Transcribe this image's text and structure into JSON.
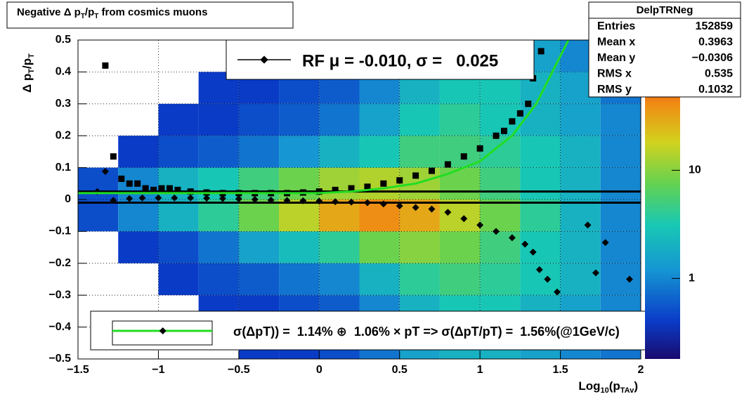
{
  "chart_data": {
    "type": "heatmap",
    "title_parts": [
      "Negative Δ p",
      "T",
      "/p",
      "T",
      " from cosmics muons"
    ],
    "x_label_parts": [
      "Log",
      "10",
      "(p",
      "TAv",
      ")"
    ],
    "y_label_parts": [
      "Δ p",
      "T",
      "/p",
      "T"
    ],
    "xlim": [
      -1.5,
      2
    ],
    "ylim": [
      -0.5,
      0.5
    ],
    "xticks": [
      {
        "value": -1.5,
        "label": "−1.5"
      },
      {
        "value": -1,
        "label": "−1"
      },
      {
        "value": -0.5,
        "label": "−0.5"
      },
      0,
      0.5,
      1,
      1.5,
      2
    ],
    "yticks": [
      {
        "value": -0.5,
        "label": "−0.5"
      },
      {
        "value": -0.4,
        "label": "−0.4"
      },
      {
        "value": -0.3,
        "label": "−0.3"
      },
      {
        "value": -0.2,
        "label": "−0.2"
      },
      {
        "value": -0.1,
        "label": "−0.1"
      },
      0,
      0.1,
      0.2,
      0.3,
      0.4,
      0.5
    ],
    "grid": true,
    "zlim": [
      0.18,
      160
    ],
    "zticks": [
      1,
      10
    ],
    "zlog": true,
    "heatmap": {
      "xbins": [
        -1.5,
        -1.25,
        -1,
        -0.75,
        -0.5,
        -0.25,
        0,
        0.25,
        0.5,
        0.75,
        1,
        1.25,
        1.5,
        1.75,
        2
      ],
      "ybins": [
        -0.5,
        -0.4,
        -0.3,
        -0.2,
        -0.1,
        0,
        0.1,
        0.2,
        0.3,
        0.4,
        0.5
      ],
      "z": [
        [
          0,
          0,
          0,
          0,
          0.4,
          0.4,
          0.5,
          0.8,
          1.5,
          2,
          2,
          1.5,
          1,
          0.8
        ],
        [
          0,
          0,
          0,
          0.4,
          0.4,
          0.5,
          0.6,
          1,
          2,
          3,
          3,
          2,
          1.5,
          1
        ],
        [
          0,
          0,
          0.4,
          0.5,
          0.6,
          0.8,
          1,
          2,
          4,
          5,
          4,
          3,
          2,
          1
        ],
        [
          0,
          0.4,
          0.5,
          0.8,
          1.5,
          2.5,
          4,
          8,
          10,
          8,
          5,
          3,
          2,
          1
        ],
        [
          0.5,
          1,
          2,
          4,
          8,
          15,
          30,
          40,
          30,
          15,
          8,
          4,
          2,
          1
        ],
        [
          0.5,
          1,
          2,
          3,
          5,
          8,
          12,
          14,
          12,
          8,
          5,
          3,
          2,
          1
        ],
        [
          0,
          0.4,
          0.5,
          0.6,
          0.8,
          1.2,
          2,
          3,
          5,
          5,
          4,
          3,
          2,
          1
        ],
        [
          0,
          0,
          0.4,
          0.4,
          0.5,
          0.6,
          0.8,
          1.5,
          3,
          4,
          3,
          2,
          1.5,
          1
        ],
        [
          0,
          0,
          0,
          0.4,
          0.4,
          0.5,
          0.6,
          1,
          2,
          3,
          3,
          2,
          1.5,
          0.8
        ],
        [
          0,
          0,
          0,
          0,
          0.4,
          0.4,
          0.5,
          0.8,
          1.5,
          2,
          2,
          1.5,
          1,
          0.8
        ]
      ]
    },
    "hlines": [
      -0.01,
      0.025
    ],
    "series": [
      {
        "type": "square",
        "color": "#000000",
        "x": [
          -1.33,
          -1.28,
          -1.23,
          -1.18,
          -1.13,
          -1.08,
          -1.03,
          -0.98,
          -0.93,
          -0.88,
          -0.8,
          -0.7,
          -0.6,
          -0.5,
          -0.4,
          -0.3,
          -0.2,
          -0.1,
          0,
          0.1,
          0.2,
          0.3,
          0.4,
          0.5,
          0.6,
          0.7,
          0.8,
          0.9,
          1.0,
          1.1,
          1.15,
          1.2,
          1.25,
          1.3,
          1.33,
          1.38
        ],
        "values": [
          0.42,
          0.135,
          0.065,
          0.05,
          0.05,
          0.035,
          0.03,
          0.035,
          0.035,
          0.03,
          0.025,
          0.022,
          0.02,
          0.02,
          0.02,
          0.02,
          0.02,
          0.022,
          0.025,
          0.03,
          0.035,
          0.04,
          0.05,
          0.06,
          0.075,
          0.09,
          0.11,
          0.135,
          0.16,
          0.2,
          0.215,
          0.245,
          0.27,
          0.3,
          0.38,
          0.465
        ]
      },
      {
        "type": "diamond",
        "color": "#000000",
        "x": [
          -1.38,
          -1.33,
          -1.28,
          -1.18,
          -1.1,
          -1.0,
          -0.9,
          -0.8,
          -0.7,
          -0.6,
          -0.5,
          -0.4,
          -0.3,
          -0.2,
          -0.1,
          0,
          0.1,
          0.2,
          0.3,
          0.4,
          0.5,
          0.6,
          0.7,
          0.8,
          0.9,
          1.0,
          1.1,
          1.2,
          1.28,
          1.33,
          1.37,
          1.42,
          1.48,
          1.67,
          1.72,
          1.78,
          1.93
        ],
        "values": [
          0.025,
          0.088,
          -0.003,
          0.003,
          0.005,
          0.005,
          0.005,
          0.005,
          0.004,
          0.003,
          0.002,
          0.0,
          -0.002,
          -0.003,
          -0.004,
          -0.005,
          -0.007,
          -0.008,
          -0.01,
          -0.014,
          -0.02,
          -0.025,
          -0.03,
          -0.04,
          -0.06,
          -0.08,
          -0.1,
          -0.12,
          -0.14,
          -0.165,
          -0.22,
          -0.25,
          -0.29,
          -0.08,
          -0.23,
          -0.135,
          -0.25
        ]
      },
      {
        "type": "line",
        "color": "#22dd22",
        "x": [
          -1.5,
          -1.0,
          -0.5,
          0,
          0.2,
          0.4,
          0.6,
          0.8,
          1.0,
          1.2,
          1.35,
          1.45,
          1.55
        ],
        "values": [
          0.02,
          0.02,
          0.02,
          0.02,
          0.025,
          0.035,
          0.05,
          0.08,
          0.12,
          0.2,
          0.3,
          0.4,
          0.5
        ]
      }
    ],
    "legend_top": "RF μ = -0.010, σ =   0.025",
    "legend_bottom": "σ(ΔpT)) =  1.14% ⊕  1.06% × pT => σ(ΔpT/pT) =  1.56%(@1GeV/c)",
    "stats": {
      "title": "DelpTRNeg",
      "rows": [
        [
          "Entries",
          "152859"
        ],
        [
          "Mean x",
          "0.3963"
        ],
        [
          "Mean y",
          "−0.0306"
        ],
        [
          "RMS x",
          "0.535"
        ],
        [
          "RMS y",
          "0.1032"
        ]
      ]
    }
  }
}
